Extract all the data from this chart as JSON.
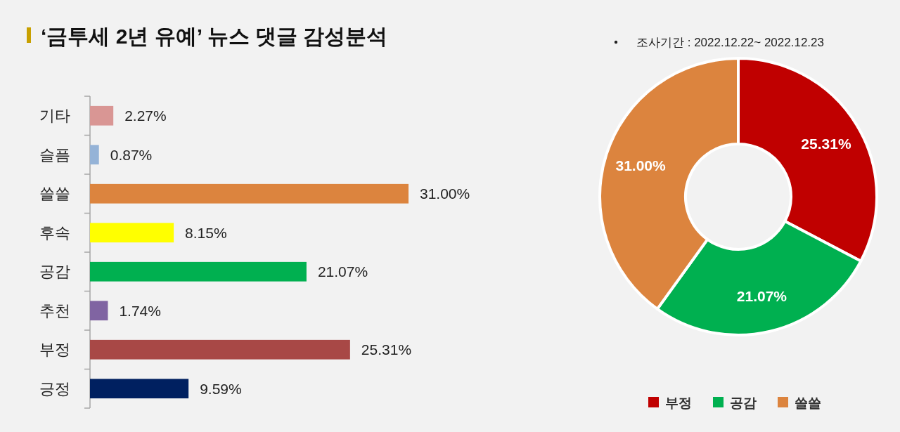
{
  "chart_data": [
    {
      "type": "bar",
      "orientation": "horizontal",
      "title": "‘금투세 2년 유예’ 뉴스 댓글 감성분석",
      "annotations": [
        "조사기간 : 2022.12.22~ 2022.12.23"
      ],
      "categories": [
        "기타",
        "슬픔",
        "쓸쓸",
        "후속",
        "공감",
        "추천",
        "부정",
        "긍정"
      ],
      "values": [
        2.27,
        0.87,
        31.0,
        8.15,
        21.07,
        1.74,
        25.31,
        9.59
      ],
      "value_labels": [
        "2.27%",
        "0.87%",
        "31.00%",
        "8.15%",
        "21.07%",
        "1.74%",
        "25.31%",
        "9.59%"
      ],
      "colors": [
        "#d99694",
        "#95b3d7",
        "#dc843e",
        "#ffff00",
        "#00b050",
        "#8064a2",
        "#a84846",
        "#002060"
      ]
    },
    {
      "type": "donut",
      "categories": [
        "부정",
        "공감",
        "쓸쓸"
      ],
      "values": [
        25.31,
        21.07,
        31.0
      ],
      "value_labels": [
        "25.31%",
        "21.07%",
        "31.00%"
      ],
      "legend": "bottom",
      "colors": [
        "#c00000",
        "#00b050",
        "#dc843e"
      ]
    }
  ]
}
